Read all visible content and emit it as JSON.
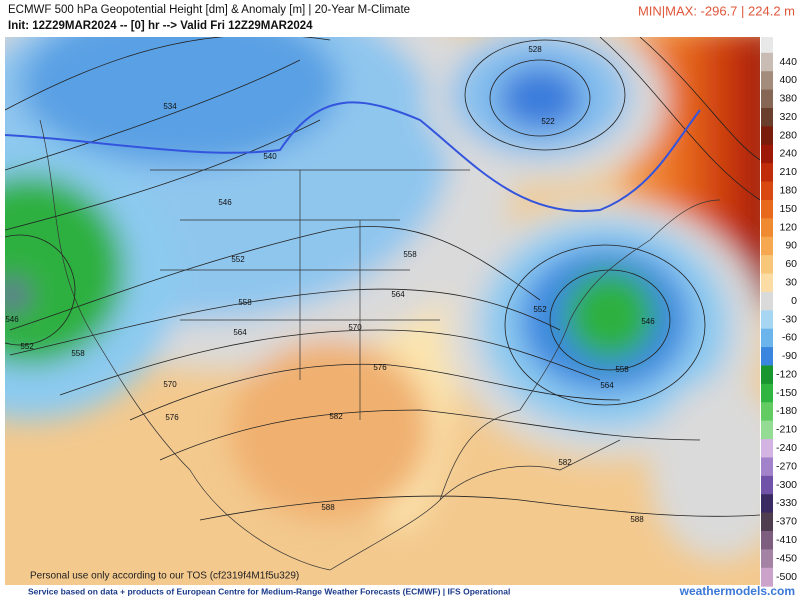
{
  "header": {
    "title": "ECMWF 500 hPa Geopotential Height [dm] & Anomaly [m] | 20-Year M-Climate",
    "init": "Init: 12Z29MAR2024 -- [0] hr --> Valid Fri 12Z29MAR2024",
    "minmax": "MIN|MAX: -296.7 | 224.2 m"
  },
  "map": {
    "contour_labels": [
      534,
      540,
      528,
      522,
      546,
      552,
      558,
      564,
      570,
      576,
      582,
      588,
      558,
      564,
      552,
      546,
      558,
      564,
      570,
      576,
      552,
      558,
      546,
      582,
      588
    ],
    "watermark": "Personal use only according to our TOS (cf2319f4M1f5u329)"
  },
  "colorbar": {
    "labels": [
      440,
      400,
      380,
      320,
      280,
      240,
      210,
      180,
      150,
      120,
      90,
      60,
      30,
      0,
      -30,
      -60,
      -90,
      -120,
      -150,
      -180,
      -210,
      -240,
      -270,
      -300,
      -330,
      -370,
      -410,
      -450,
      -500
    ],
    "colors": [
      "#c9bcb4",
      "#a48c7c",
      "#866654",
      "#6a3e2c",
      "#7a1c0c",
      "#9e1808",
      "#c02c0a",
      "#d84810",
      "#e8681c",
      "#f08a30",
      "#f5a850",
      "#f8c678",
      "#fbdca4",
      "#dadada",
      "#a6d6f2",
      "#6cb4ec",
      "#3a86de",
      "#1a9630",
      "#30b640",
      "#62cc62",
      "#94dc94",
      "#d4b4e2",
      "#a282ca",
      "#7052a8",
      "#3a2a62",
      "#4e3e50",
      "#7e5e7e",
      "#a482a4",
      "#caa2ca"
    ]
  },
  "footer": {
    "credit": "Service based on data + products of European Centre for Medium-Range Weather Forecasts (ECMWF) | IFS Operational",
    "site": "weathermodels.com"
  }
}
